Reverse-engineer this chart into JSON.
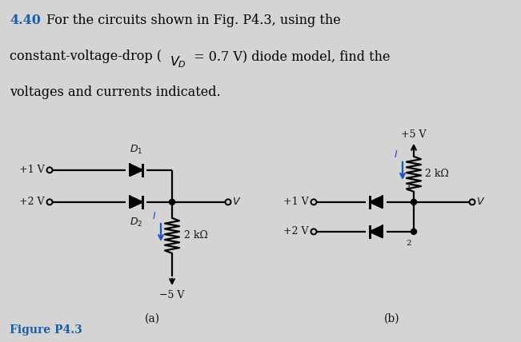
{
  "header_bg": "#d4d4d4",
  "circuit_bg": "#c8cdd5",
  "fig_label_color": "#1a5fa8",
  "label_color": "#2255bb",
  "text_color": "#111111",
  "header_number": "4.40",
  "header_line1": " For the circuits shown in Fig. P4.3, using the",
  "header_line2": "constant-voltage-drop (",
  "header_vd": "$V_D$",
  "header_line2b": " = 0.7 V) diode model, find the",
  "header_line3": "voltages and currents indicated.",
  "fig_label": "Figure P4.3"
}
